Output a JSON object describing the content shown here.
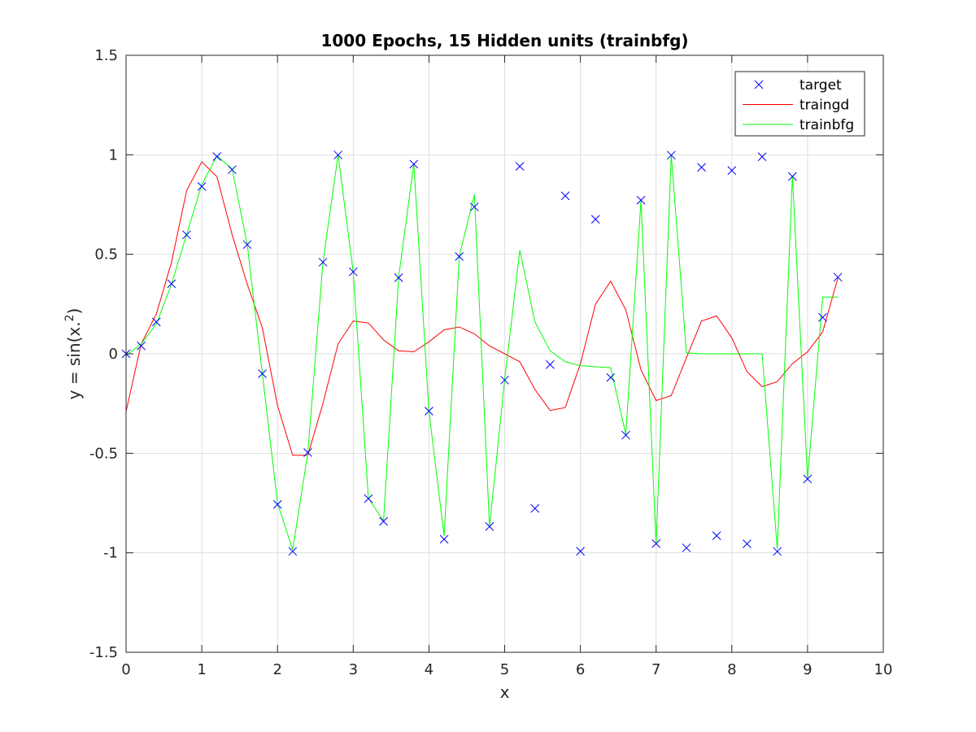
{
  "chart_data": {
    "type": "line",
    "title": "1000 Epochs, 15 Hidden units (trainbfg)",
    "xlabel": "x",
    "ylabel": "y = sin(x.^2)",
    "xlim": [
      0,
      10
    ],
    "ylim": [
      -1.5,
      1.5
    ],
    "xticks": [
      0,
      1,
      2,
      3,
      4,
      5,
      6,
      7,
      8,
      9,
      10
    ],
    "yticks": [
      -1.5,
      -1,
      -0.5,
      0,
      0.5,
      1,
      1.5
    ],
    "xtick_labels": [
      "0",
      "1",
      "2",
      "3",
      "4",
      "5",
      "6",
      "7",
      "8",
      "9",
      "10"
    ],
    "ytick_labels": [
      "-1.5",
      "-1",
      "-0.5",
      "0",
      "0.5",
      "1",
      "1.5"
    ],
    "grid": true,
    "legend_position": "top-right",
    "series": [
      {
        "name": "target",
        "style": "marker-x",
        "color": "#0000ff",
        "x": [
          0,
          0.2,
          0.4,
          0.6,
          0.8,
          1.0,
          1.2,
          1.4,
          1.6,
          1.8,
          2.0,
          2.2,
          2.4,
          2.6,
          2.8,
          3.0,
          3.2,
          3.4,
          3.6,
          3.8,
          4.0,
          4.2,
          4.4,
          4.6,
          4.8,
          5.0,
          5.2,
          5.4,
          5.6,
          5.8,
          6.0,
          6.2,
          6.4,
          6.6,
          6.8,
          7.0,
          7.2,
          7.4,
          7.6,
          7.8,
          8.0,
          8.2,
          8.4,
          8.6,
          8.8,
          9.0,
          9.2,
          9.4
        ],
        "y": [
          0.0,
          0.04,
          0.16,
          0.352,
          0.598,
          0.841,
          0.991,
          0.925,
          0.549,
          -0.1,
          -0.757,
          -0.993,
          -0.496,
          0.46,
          0.999,
          0.412,
          -0.728,
          -0.842,
          0.382,
          0.953,
          -0.288,
          -0.932,
          0.489,
          0.738,
          -0.868,
          -0.132,
          0.942,
          -0.777,
          -0.054,
          0.794,
          -0.992,
          0.676,
          -0.119,
          -0.409,
          0.772,
          -0.954,
          0.998,
          -0.975,
          0.937,
          -0.914,
          0.921,
          -0.955,
          0.99,
          -0.993,
          0.891,
          -0.629,
          0.183,
          0.385
        ]
      },
      {
        "name": "traingd",
        "style": "line",
        "color": "#ff0000",
        "x": [
          0,
          0.2,
          0.4,
          0.6,
          0.8,
          1.0,
          1.2,
          1.4,
          1.6,
          1.8,
          2.0,
          2.2,
          2.4,
          2.6,
          2.8,
          3.0,
          3.2,
          3.4,
          3.6,
          3.8,
          4.0,
          4.2,
          4.4,
          4.6,
          4.8,
          5.0,
          5.2,
          5.4,
          5.6,
          5.8,
          6.0,
          6.2,
          6.4,
          6.6,
          6.8,
          7.0,
          7.2,
          7.4,
          7.6,
          7.8,
          8.0,
          8.2,
          8.4,
          8.6,
          8.8,
          9.0,
          9.2,
          9.4
        ],
        "y": [
          -0.29,
          0.05,
          0.2,
          0.46,
          0.82,
          0.965,
          0.89,
          0.6,
          0.35,
          0.13,
          -0.26,
          -0.51,
          -0.51,
          -0.25,
          0.05,
          0.165,
          0.155,
          0.07,
          0.015,
          0.01,
          0.06,
          0.12,
          0.135,
          0.1,
          0.04,
          0.0,
          -0.04,
          -0.18,
          -0.285,
          -0.27,
          -0.05,
          0.25,
          0.365,
          0.22,
          -0.08,
          -0.235,
          -0.21,
          -0.02,
          0.165,
          0.19,
          0.08,
          -0.09,
          -0.165,
          -0.14,
          -0.05,
          0.01,
          0.11,
          0.38
        ]
      },
      {
        "name": "trainbfg",
        "style": "line",
        "color": "#00ff00",
        "x": [
          0,
          0.2,
          0.4,
          0.6,
          0.8,
          1.0,
          1.2,
          1.4,
          1.6,
          1.8,
          2.0,
          2.2,
          2.4,
          2.6,
          2.8,
          3.0,
          3.2,
          3.4,
          3.6,
          3.8,
          4.0,
          4.2,
          4.4,
          4.6,
          4.8,
          5.0,
          5.2,
          5.4,
          5.6,
          5.8,
          6.0,
          6.2,
          6.4,
          6.6,
          6.8,
          7.0,
          7.2,
          7.4,
          7.6,
          7.8,
          8.0,
          8.2,
          8.4,
          8.6,
          8.8,
          9.0,
          9.2,
          9.4
        ],
        "y": [
          -0.01,
          0.05,
          0.15,
          0.35,
          0.6,
          0.85,
          0.995,
          0.93,
          0.55,
          -0.1,
          -0.75,
          -0.985,
          -0.5,
          0.46,
          1.0,
          0.41,
          -0.725,
          -0.84,
          0.385,
          0.955,
          -0.29,
          -0.915,
          0.49,
          0.8,
          -0.87,
          -0.13,
          0.52,
          0.16,
          0.015,
          -0.04,
          -0.06,
          -0.065,
          -0.07,
          -0.405,
          0.77,
          -0.955,
          1.0,
          0.005,
          0.0,
          0.0,
          0.0,
          0.0,
          0.0,
          -0.98,
          0.895,
          -0.63,
          0.285,
          0.285
        ]
      }
    ]
  }
}
